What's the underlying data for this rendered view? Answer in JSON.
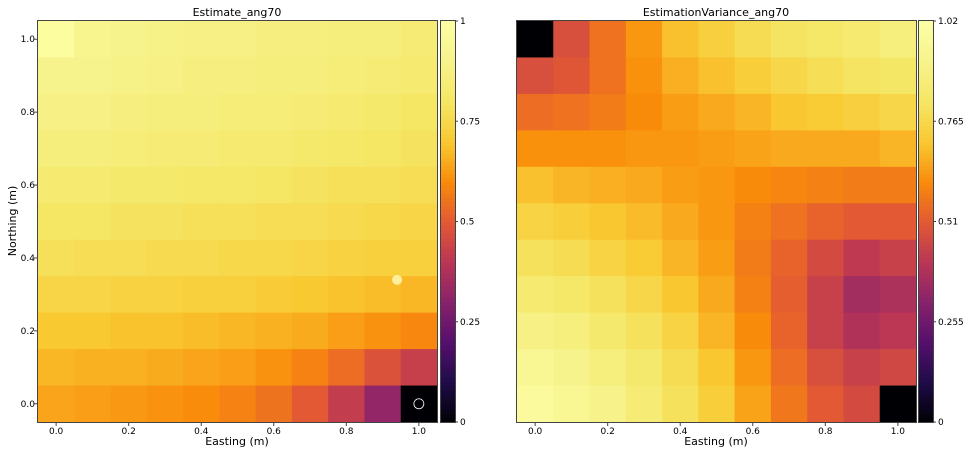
{
  "chart_data": [
    {
      "type": "heatmap",
      "title": "Estimate_ang70",
      "xlabel": "Easting (m)",
      "ylabel": "Northing (m)",
      "x_range": [
        0.0,
        1.0
      ],
      "y_range": [
        0.0,
        1.0
      ],
      "xticks": [
        "0.0",
        "0.2",
        "0.4",
        "0.6",
        "0.8",
        "1.0"
      ],
      "yticks": [
        "0.0",
        "0.2",
        "0.4",
        "0.6",
        "0.8",
        "1.0"
      ],
      "colormap": "inferno",
      "colorbar": {
        "min": 0,
        "max": 1,
        "ticks": [
          "0",
          "0.25",
          "0.5",
          "0.75",
          "1"
        ]
      },
      "grid_size": [
        11,
        11
      ],
      "row_order": "top-to-bottom (Northing 1.0 to 0.0)",
      "values": [
        [
          0.98,
          0.91,
          0.9,
          0.89,
          0.88,
          0.88,
          0.87,
          0.87,
          0.86,
          0.86,
          0.84
        ],
        [
          0.9,
          0.9,
          0.89,
          0.88,
          0.87,
          0.87,
          0.86,
          0.86,
          0.85,
          0.84,
          0.83
        ],
        [
          0.88,
          0.88,
          0.87,
          0.86,
          0.86,
          0.85,
          0.85,
          0.84,
          0.83,
          0.82,
          0.8
        ],
        [
          0.86,
          0.86,
          0.85,
          0.84,
          0.84,
          0.83,
          0.83,
          0.82,
          0.81,
          0.8,
          0.79
        ],
        [
          0.83,
          0.83,
          0.82,
          0.82,
          0.81,
          0.81,
          0.8,
          0.79,
          0.78,
          0.78,
          0.77
        ],
        [
          0.8,
          0.8,
          0.79,
          0.79,
          0.78,
          0.78,
          0.77,
          0.77,
          0.76,
          0.75,
          0.74
        ],
        [
          0.78,
          0.77,
          0.77,
          0.76,
          0.76,
          0.75,
          0.75,
          0.74,
          0.73,
          0.72,
          0.72
        ],
        [
          0.74,
          0.74,
          0.73,
          0.73,
          0.72,
          0.72,
          0.71,
          0.7,
          0.69,
          0.68,
          0.67
        ],
        [
          0.7,
          0.7,
          0.69,
          0.69,
          0.68,
          0.67,
          0.66,
          0.65,
          0.63,
          0.61,
          0.59
        ],
        [
          0.67,
          0.66,
          0.66,
          0.65,
          0.64,
          0.63,
          0.61,
          0.58,
          0.54,
          0.48,
          0.43
        ],
        [
          0.64,
          0.63,
          0.62,
          0.61,
          0.6,
          0.58,
          0.55,
          0.5,
          0.42,
          0.32,
          0.0
        ]
      ],
      "markers": [
        {
          "x": 0.94,
          "y": 0.34,
          "style": "filled",
          "color": "#ffef9a"
        },
        {
          "x": 1.0,
          "y": 0.0,
          "style": "hollow",
          "color": "#ffffff"
        }
      ]
    },
    {
      "type": "heatmap",
      "title": "EstimationVariance_ang70",
      "xlabel": "Easting (m)",
      "ylabel": "",
      "x_range": [
        0.0,
        1.0
      ],
      "y_range": [
        0.0,
        1.0
      ],
      "xticks": [
        "0.0",
        "0.2",
        "0.4",
        "0.6",
        "0.8",
        "1.0"
      ],
      "colormap": "inferno",
      "colorbar": {
        "min": 0,
        "max": 1.02,
        "ticks": [
          "0",
          "0.255",
          "0.51",
          "0.765",
          "1.02"
        ]
      },
      "grid_size": [
        11,
        11
      ],
      "row_order": "top-to-bottom (Northing 1.0 to 0.0)",
      "values": [
        [
          0.0,
          0.48,
          0.56,
          0.63,
          0.7,
          0.74,
          0.78,
          0.81,
          0.83,
          0.85,
          0.88
        ],
        [
          0.48,
          0.5,
          0.56,
          0.62,
          0.67,
          0.7,
          0.73,
          0.76,
          0.79,
          0.81,
          0.82
        ],
        [
          0.55,
          0.56,
          0.58,
          0.61,
          0.64,
          0.66,
          0.68,
          0.71,
          0.72,
          0.74,
          0.76
        ],
        [
          0.62,
          0.62,
          0.62,
          0.63,
          0.63,
          0.64,
          0.65,
          0.66,
          0.66,
          0.66,
          0.68
        ],
        [
          0.7,
          0.68,
          0.67,
          0.66,
          0.64,
          0.63,
          0.61,
          0.6,
          0.59,
          0.58,
          0.58
        ],
        [
          0.75,
          0.73,
          0.71,
          0.69,
          0.66,
          0.63,
          0.59,
          0.56,
          0.53,
          0.51,
          0.51
        ],
        [
          0.8,
          0.78,
          0.75,
          0.72,
          0.68,
          0.64,
          0.58,
          0.53,
          0.47,
          0.42,
          0.44
        ],
        [
          0.85,
          0.83,
          0.8,
          0.76,
          0.71,
          0.66,
          0.59,
          0.52,
          0.44,
          0.36,
          0.38
        ],
        [
          0.9,
          0.88,
          0.84,
          0.8,
          0.75,
          0.68,
          0.61,
          0.53,
          0.44,
          0.39,
          0.41
        ],
        [
          0.95,
          0.92,
          0.88,
          0.84,
          0.78,
          0.71,
          0.63,
          0.55,
          0.48,
          0.44,
          0.46
        ],
        [
          0.99,
          0.95,
          0.91,
          0.86,
          0.8,
          0.73,
          0.65,
          0.57,
          0.51,
          0.47,
          0.0
        ]
      ]
    }
  ]
}
